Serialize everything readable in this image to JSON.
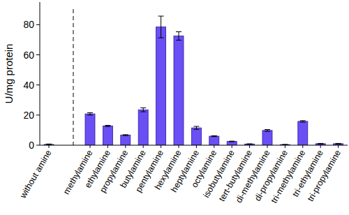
{
  "chart_data": {
    "type": "bar",
    "y_label": "U/mg protein",
    "categories": [
      "without amine",
      "methylamine",
      "ethylamine",
      "propylamine",
      "butylamine",
      "pentylamine",
      "hexylamine",
      "heptylamine",
      "octylamine",
      "isobutylamine",
      "tert-butylamine",
      "di-methylamine",
      "di-propylamine",
      "tri-methylamine",
      "tri-ethylamine",
      "tri-propylamine"
    ],
    "values": [
      0.5,
      20.8,
      12.8,
      6.7,
      23.5,
      78.5,
      72.5,
      11.5,
      6.0,
      2.5,
      0.8,
      9.8,
      0.4,
      15.8,
      1.0,
      1.0
    ],
    "errors": [
      0.3,
      0.8,
      0.4,
      0.3,
      1.3,
      7.2,
      2.8,
      1.0,
      0.3,
      0.2,
      0.1,
      0.6,
      0.1,
      0.5,
      0.2,
      0.2
    ],
    "color": "#6a4ff5",
    "ylim": [
      0,
      95
    ],
    "yticks": [
      0,
      20,
      40,
      60,
      80
    ],
    "grid": false
  }
}
